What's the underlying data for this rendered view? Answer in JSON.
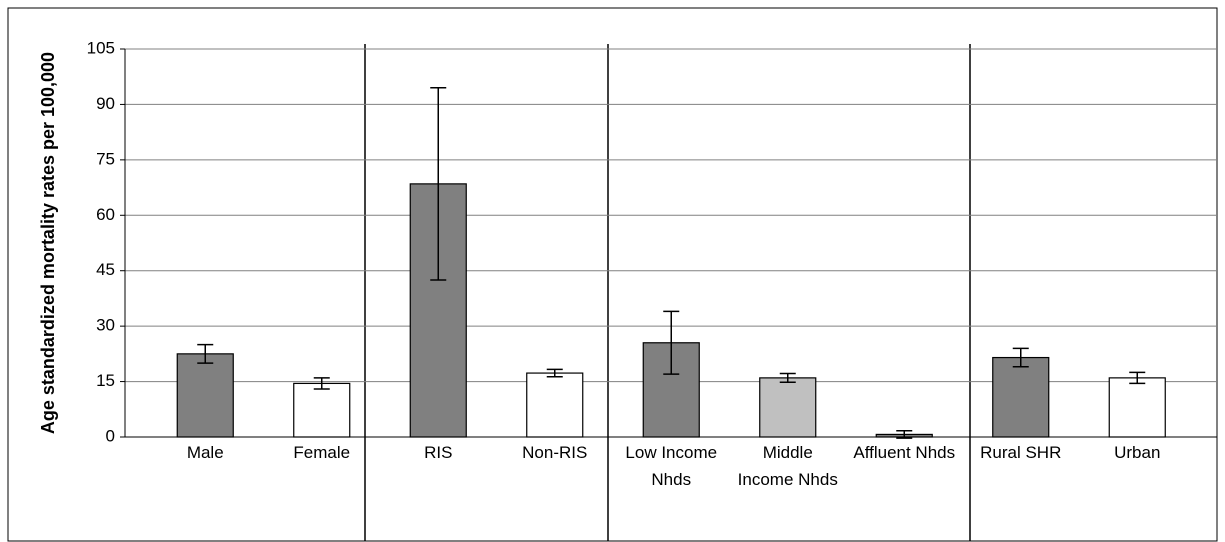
{
  "chart_data": {
    "type": "bar",
    "ylabel": "Age standardized mortality rates per 100,000",
    "categories": [
      "Male",
      "Female",
      "RIS",
      "Non-RIS",
      "Low Income Nhds",
      "Middle Income Nhds",
      "Affluent Nhds",
      "Rural SHR",
      "Urban"
    ],
    "values": [
      22.5,
      14.5,
      68.5,
      17.3,
      25.5,
      16,
      0.7,
      21.5,
      16
    ],
    "errors": [
      2.5,
      1.5,
      26,
      1,
      8.5,
      1.2,
      1,
      2.5,
      1.5
    ],
    "colors": [
      "#808080",
      "#ffffff",
      "#808080",
      "#ffffff",
      "#808080",
      "#c0c0c0",
      "#808080",
      "#808080",
      "#ffffff"
    ],
    "ylim": [
      0,
      105
    ],
    "yticks": [
      0,
      15,
      30,
      45,
      60,
      75,
      90,
      105
    ],
    "grid": true
  }
}
